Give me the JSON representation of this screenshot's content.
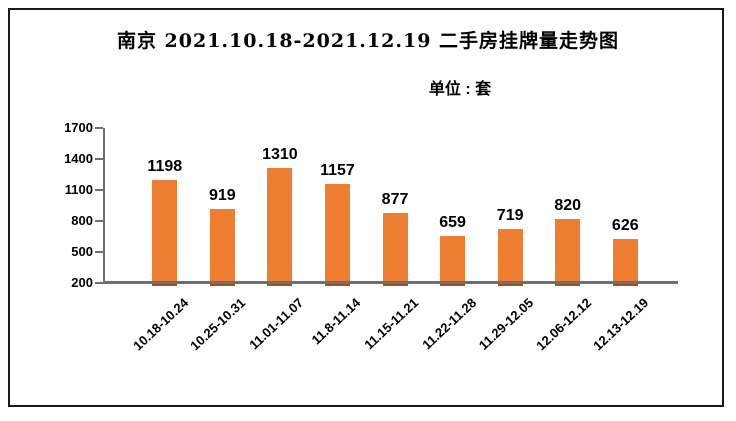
{
  "chart_data": {
    "type": "bar",
    "title": "南京 2021.10.18-2021.12.19 二手房挂牌量走势图",
    "unit_label": "单位 : 套",
    "categories": [
      "10.18-10.24",
      "10.25-10.31",
      "11.01-11.07",
      "11.8-11.14",
      "11.15-11.21",
      "11.22-11.28",
      "11.29-12.05",
      "12.06-12.12",
      "12.13-12.19"
    ],
    "values": [
      1198,
      919,
      1310,
      1157,
      877,
      659,
      719,
      820,
      626
    ],
    "xlabel": "",
    "ylabel": "",
    "ylim": [
      200,
      1700
    ],
    "yticks": [
      200,
      500,
      800,
      1100,
      1400,
      1700
    ],
    "grid": false,
    "legend": false,
    "colors": {
      "bar": "#ED7D31",
      "bar_base": "#995426",
      "axis": "#6F6F6F",
      "text": "#000000",
      "border": "#1A1A1A",
      "background": "#FFFFFF"
    }
  }
}
